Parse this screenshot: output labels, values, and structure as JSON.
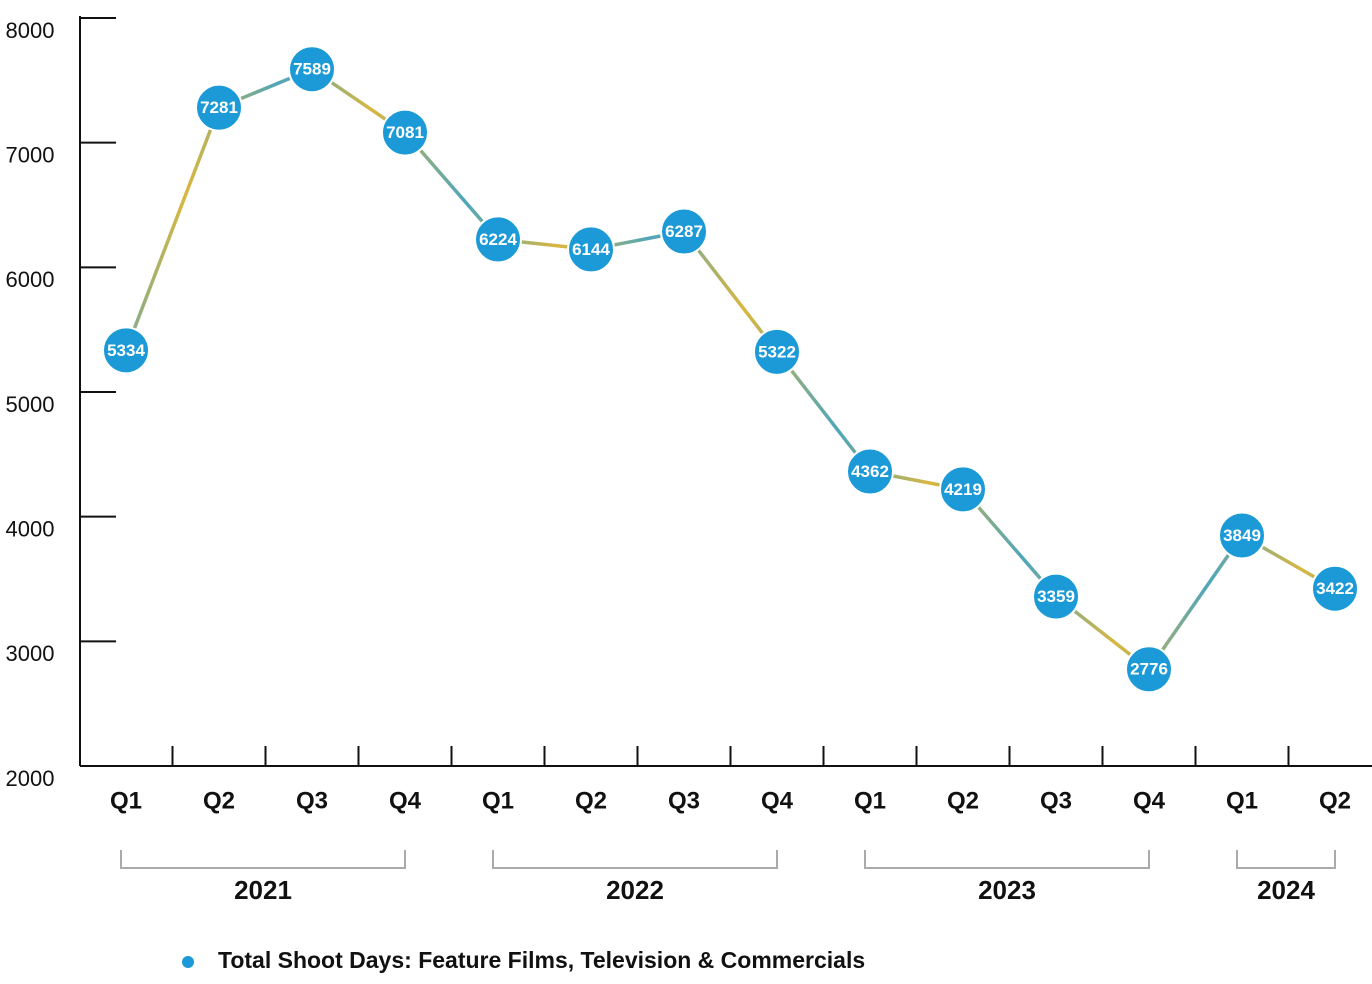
{
  "chart_data": {
    "type": "line",
    "categories": [
      "Q1",
      "Q2",
      "Q3",
      "Q4",
      "Q1",
      "Q2",
      "Q3",
      "Q4",
      "Q1",
      "Q2",
      "Q3",
      "Q4",
      "Q1",
      "Q2"
    ],
    "category_groups": [
      {
        "label": "2021",
        "count": 4
      },
      {
        "label": "2022",
        "count": 4
      },
      {
        "label": "2023",
        "count": 4
      },
      {
        "label": "2024",
        "count": 2
      }
    ],
    "series": [
      {
        "name": "Total Shoot Days: Feature Films, Television & Commercials",
        "color": "#1b9ad7",
        "line_colors": [
          "#d9b740",
          "#4fa6bb"
        ],
        "values": [
          5334,
          7281,
          7589,
          7081,
          6224,
          6144,
          6287,
          5322,
          4362,
          4219,
          3359,
          2776,
          3849,
          3422
        ]
      }
    ],
    "ylim": [
      2000,
      8000
    ],
    "yticks": [
      2000,
      3000,
      4000,
      5000,
      6000,
      7000,
      8000
    ],
    "legend": "bottom"
  }
}
